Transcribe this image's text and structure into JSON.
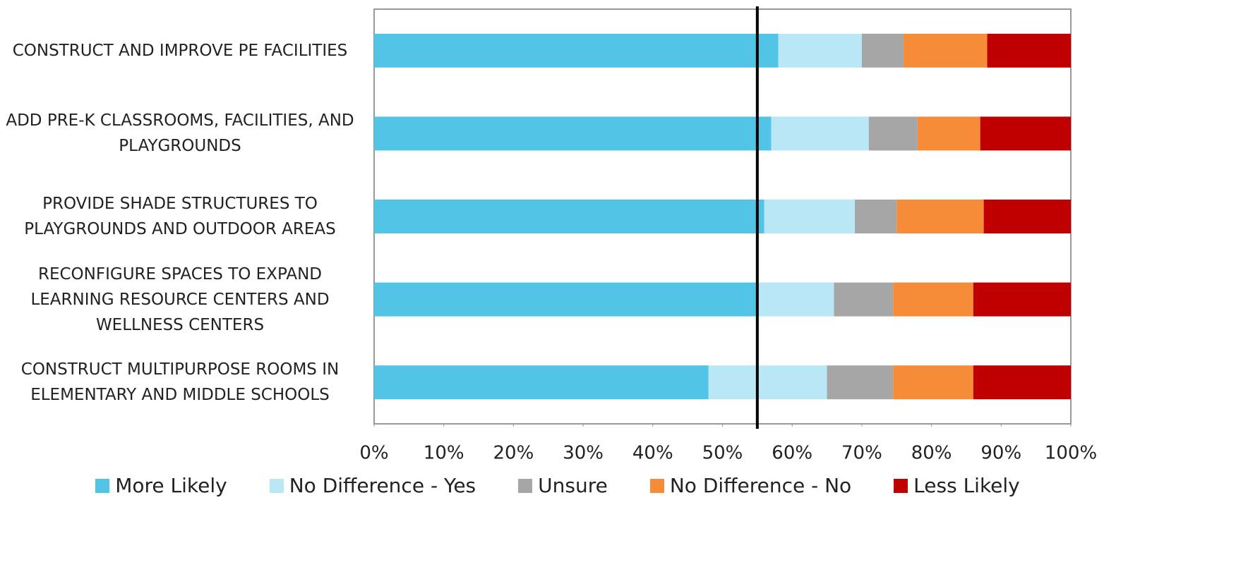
{
  "chart_data": {
    "type": "stacked-bar-horizontal",
    "categories": [
      "CONSTRUCT AND IMPROVE PE FACILITIES",
      "ADD PRE-K CLASSROOMS, FACILITIES, AND PLAYGROUNDS",
      "PROVIDE SHADE STRUCTURES TO PLAYGROUNDS AND OUTDOOR AREAS",
      "RECONFIGURE SPACES TO EXPAND LEARNING RESOURCE CENTERS AND WELLNESS CENTERS",
      "CONSTRUCT MULTIPURPOSE ROOMS IN ELEMENTARY AND MIDDLE SCHOOLS"
    ],
    "series": [
      {
        "name": "More Likely",
        "color": "#52c5e7",
        "values": [
          58,
          57,
          56,
          55,
          48
        ]
      },
      {
        "name": "No Difference - Yes",
        "color": "#b9e7f6",
        "values": [
          12,
          14,
          13,
          11,
          17
        ]
      },
      {
        "name": "Unsure",
        "color": "#a6a6a6",
        "values": [
          6,
          7,
          6,
          8.5,
          9.5
        ]
      },
      {
        "name": "No Difference - No",
        "color": "#f68c37",
        "values": [
          12,
          9,
          12.5,
          11.5,
          11.5
        ]
      },
      {
        "name": "Less Likely",
        "color": "#c00000",
        "values": [
          12,
          13,
          12.5,
          14,
          14
        ]
      }
    ],
    "xlim": [
      0,
      100
    ],
    "xticks": [
      {
        "value": 0,
        "label": "0%"
      },
      {
        "value": 10,
        "label": "10%"
      },
      {
        "value": 20,
        "label": "20%"
      },
      {
        "value": 30,
        "label": "30%"
      },
      {
        "value": 40,
        "label": "40%"
      },
      {
        "value": 50,
        "label": "50%"
      },
      {
        "value": 60,
        "label": "60%"
      },
      {
        "value": 70,
        "label": "70%"
      },
      {
        "value": 80,
        "label": "80%"
      },
      {
        "value": 90,
        "label": "90%"
      },
      {
        "value": 100,
        "label": "100%"
      }
    ],
    "reference_line": 55,
    "legend": "bottom"
  }
}
